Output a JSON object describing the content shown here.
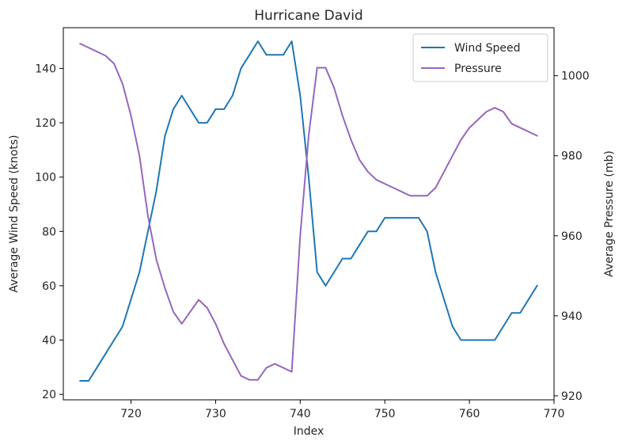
{
  "chart_data": {
    "type": "line",
    "title": "Hurricane David",
    "xlabel": "Index",
    "ylabel_left": "Average Wind Speed (knots)",
    "ylabel_right": "Average Pressure (mb)",
    "xlim": [
      712,
      770
    ],
    "ylim_left": [
      18,
      155
    ],
    "ylim_right": [
      919,
      1012
    ],
    "x_ticks": [
      720,
      730,
      740,
      750,
      760,
      770
    ],
    "y_ticks_left": [
      20,
      40,
      60,
      80,
      100,
      120,
      140
    ],
    "y_ticks_right": [
      920,
      940,
      960,
      980,
      1000
    ],
    "grid": false,
    "legend_position": "top-right",
    "x": [
      714,
      715,
      716,
      717,
      718,
      719,
      720,
      721,
      722,
      723,
      724,
      725,
      726,
      727,
      728,
      729,
      730,
      731,
      732,
      733,
      734,
      735,
      736,
      737,
      738,
      739,
      740,
      741,
      742,
      743,
      744,
      745,
      746,
      747,
      748,
      749,
      750,
      751,
      752,
      753,
      754,
      755,
      756,
      757,
      758,
      759,
      760,
      761,
      762,
      763,
      764,
      765,
      766,
      767,
      768
    ],
    "series": [
      {
        "name": "Wind Speed",
        "axis": "left",
        "color": "#1f77b4",
        "values": [
          25,
          25,
          30,
          35,
          40,
          45,
          55,
          65,
          80,
          95,
          115,
          125,
          130,
          125,
          120,
          120,
          125,
          125,
          130,
          140,
          145,
          150,
          145,
          145,
          145,
          150,
          130,
          100,
          65,
          60,
          65,
          70,
          70,
          75,
          80,
          80,
          85,
          85,
          85,
          85,
          85,
          80,
          65,
          55,
          45,
          40,
          40,
          40,
          40,
          40,
          45,
          50,
          50,
          55,
          60
        ]
      },
      {
        "name": "Pressure",
        "axis": "right",
        "color": "#9467bd",
        "values": [
          1008,
          1007,
          1006,
          1005,
          1003,
          998,
          990,
          980,
          965,
          954,
          947,
          941,
          938,
          941,
          944,
          942,
          938,
          933,
          929,
          925,
          924,
          924,
          927,
          928,
          927,
          926,
          960,
          985,
          1002,
          1002,
          997,
          990,
          984,
          979,
          976,
          974,
          973,
          972,
          971,
          970,
          970,
          970,
          972,
          976,
          980,
          984,
          987,
          989,
          991,
          992,
          991,
          988,
          987,
          986,
          985
        ]
      }
    ]
  }
}
